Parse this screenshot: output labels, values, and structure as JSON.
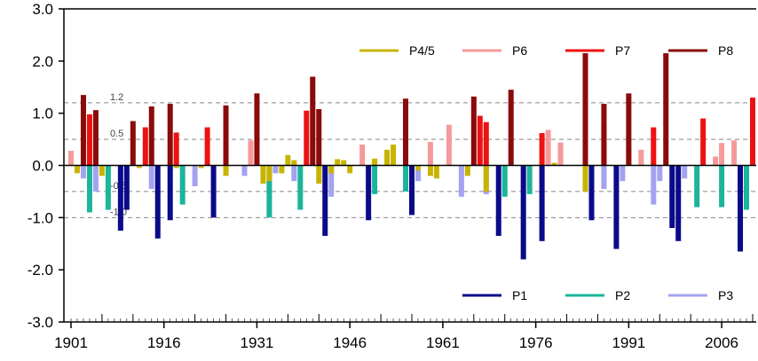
{
  "chart_data": {
    "type": "bar",
    "title": "",
    "xlabel": "",
    "ylabel": "",
    "xlim": [
      1901,
      2011
    ],
    "ylim": [
      -3.0,
      3.0
    ],
    "x_ticks": [
      1901,
      1916,
      1931,
      1946,
      1961,
      1976,
      1991,
      2006
    ],
    "x_tick_labels": [
      "1901",
      "1916",
      "1931",
      "1946",
      "1961",
      "1976",
      "1991",
      "2006"
    ],
    "y_ticks": [
      3.0,
      2.0,
      1.0,
      0.0,
      -1.0,
      -2.0,
      -3.0
    ],
    "y_tick_labels": [
      "3.0",
      "2.0",
      "1.0",
      "0.0",
      "-1.0",
      "-2.0",
      "-3.0"
    ],
    "reference_lines": [
      {
        "value": 1.2,
        "label": "1.2"
      },
      {
        "value": 0.5,
        "label": "0.5"
      },
      {
        "value": -0.5,
        "label": "-0.5"
      },
      {
        "value": -1.0,
        "label": "-1.0"
      }
    ],
    "legends": [
      {
        "position": "top-right",
        "entries": [
          "P4/5",
          "P6",
          "P7",
          "P8"
        ]
      },
      {
        "position": "bottom-right",
        "entries": [
          "P1",
          "P2",
          "P3"
        ]
      }
    ],
    "colors": {
      "P1": "#0a0a8a",
      "P2": "#1ab59a",
      "P3": "#a3a3f0",
      "P4/5": "#c8b400",
      "P6": "#f59a9a",
      "P7": "#ee1111",
      "P8": "#8b0a0a"
    },
    "series": [
      {
        "name": "P1",
        "points": [
          [
            1909,
            -1.25
          ],
          [
            1910,
            -0.85
          ],
          [
            1915,
            -1.4
          ],
          [
            1917,
            -1.05
          ],
          [
            1924,
            -1.0
          ],
          [
            1942,
            -1.35
          ],
          [
            1949,
            -1.05
          ],
          [
            1956,
            -0.95
          ],
          [
            1970,
            -1.35
          ],
          [
            1974,
            -1.8
          ],
          [
            1977,
            -1.45
          ],
          [
            1985,
            -1.05
          ],
          [
            1989,
            -1.6
          ],
          [
            1998,
            -1.2
          ],
          [
            1999,
            -1.45
          ],
          [
            2009,
            -1.65
          ]
        ]
      },
      {
        "name": "P2",
        "points": [
          [
            1904,
            -0.9
          ],
          [
            1907,
            -0.85
          ],
          [
            1919,
            -0.75
          ],
          [
            1933,
            -1.0
          ],
          [
            1938,
            -0.85
          ],
          [
            1950,
            -0.55
          ],
          [
            1955,
            -0.5
          ],
          [
            1971,
            -0.6
          ],
          [
            1975,
            -0.55
          ],
          [
            2002,
            -0.8
          ],
          [
            2006,
            -0.8
          ],
          [
            2010,
            -0.85
          ]
        ]
      },
      {
        "name": "P3",
        "points": [
          [
            1903,
            -0.25
          ],
          [
            1905,
            -0.5
          ],
          [
            1914,
            -0.45
          ],
          [
            1921,
            -0.4
          ],
          [
            1929,
            -0.2
          ],
          [
            1934,
            -0.15
          ],
          [
            1937,
            -0.3
          ],
          [
            1943,
            -0.6
          ],
          [
            1957,
            -0.3
          ],
          [
            1964,
            -0.6
          ],
          [
            1968,
            -0.55
          ],
          [
            1987,
            -0.45
          ],
          [
            1990,
            -0.3
          ],
          [
            1995,
            -0.75
          ],
          [
            1996,
            -0.3
          ],
          [
            2000,
            -0.25
          ]
        ]
      },
      {
        "name": "P4/5",
        "points": [
          [
            1902,
            -0.15
          ],
          [
            1906,
            -0.2
          ],
          [
            1912,
            -0.05
          ],
          [
            1918,
            -0.05
          ],
          [
            1922,
            -0.05
          ],
          [
            1926,
            -0.2
          ],
          [
            1932,
            -0.35
          ],
          [
            1933,
            -0.3
          ],
          [
            1935,
            -0.15
          ],
          [
            1936,
            0.2
          ],
          [
            1937,
            0.1
          ],
          [
            1941,
            -0.35
          ],
          [
            1943,
            -0.15
          ],
          [
            1944,
            0.12
          ],
          [
            1945,
            0.1
          ],
          [
            1946,
            -0.15
          ],
          [
            1950,
            0.13
          ],
          [
            1952,
            0.3
          ],
          [
            1953,
            0.4
          ],
          [
            1957,
            -0.1
          ],
          [
            1959,
            -0.2
          ],
          [
            1960,
            -0.25
          ],
          [
            1965,
            -0.2
          ],
          [
            1966,
            0.05
          ],
          [
            1968,
            -0.5
          ],
          [
            1979,
            0.05
          ],
          [
            1984,
            -0.5
          ],
          [
            1993,
            0.05
          ],
          [
            1995,
            0.05
          ]
        ]
      },
      {
        "name": "P6",
        "points": [
          [
            1901,
            0.28
          ],
          [
            1930,
            0.48
          ],
          [
            1948,
            0.4
          ],
          [
            1959,
            0.45
          ],
          [
            1962,
            0.78
          ],
          [
            1978,
            0.68
          ],
          [
            1980,
            0.44
          ],
          [
            1991,
            0.32
          ],
          [
            1993,
            0.3
          ],
          [
            2005,
            0.17
          ],
          [
            2006,
            0.43
          ],
          [
            2008,
            0.48
          ]
        ]
      },
      {
        "name": "P7",
        "points": [
          [
            1904,
            0.98
          ],
          [
            1913,
            0.73
          ],
          [
            1918,
            0.63
          ],
          [
            1923,
            0.73
          ],
          [
            1939,
            1.05
          ],
          [
            1967,
            0.95
          ],
          [
            1968,
            0.83
          ],
          [
            1977,
            0.62
          ],
          [
            1987,
            0.78
          ],
          [
            1995,
            0.73
          ],
          [
            2003,
            0.9
          ],
          [
            2011,
            1.3
          ]
        ]
      },
      {
        "name": "P8",
        "points": [
          [
            1903,
            1.35
          ],
          [
            1905,
            1.06
          ],
          [
            1911,
            0.85
          ],
          [
            1914,
            1.13
          ],
          [
            1917,
            1.18
          ],
          [
            1926,
            1.15
          ],
          [
            1931,
            1.38
          ],
          [
            1940,
            1.7
          ],
          [
            1941,
            1.08
          ],
          [
            1955,
            1.28
          ],
          [
            1966,
            1.32
          ],
          [
            1972,
            1.45
          ],
          [
            1984,
            2.15
          ],
          [
            1987,
            1.18
          ],
          [
            1991,
            1.38
          ],
          [
            1997,
            2.15
          ]
        ]
      }
    ]
  }
}
